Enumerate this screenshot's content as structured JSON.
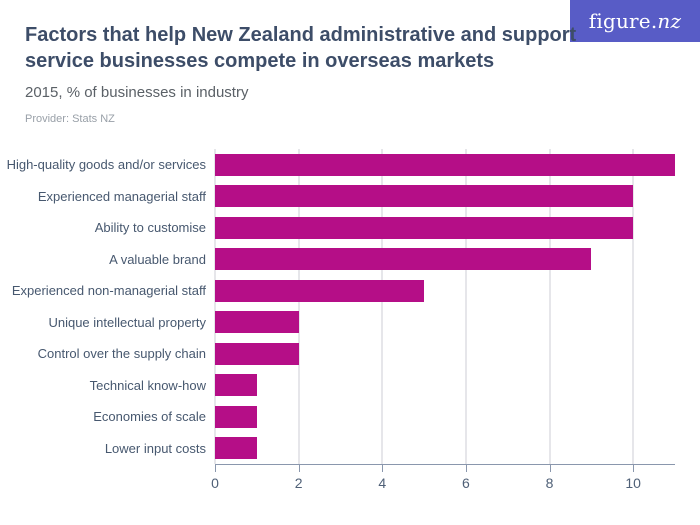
{
  "logo": {
    "text_main": "figure.",
    "text_accent": "nz"
  },
  "header": {
    "title": "Factors that help New Zealand administrative and support service businesses compete in overseas markets",
    "subtitle": "2015, % of businesses in industry",
    "provider": "Provider: Stats NZ"
  },
  "chart_data": {
    "type": "bar",
    "orientation": "horizontal",
    "title": "Factors that help New Zealand administrative and support service businesses compete in overseas markets",
    "subtitle": "2015, % of businesses in industry",
    "categories": [
      "High-quality goods and/or services",
      "Experienced managerial staff",
      "Ability to customise",
      "A valuable brand",
      "Experienced non-managerial staff",
      "Unique intellectual property",
      "Control over the supply chain",
      "Technical know-how",
      "Economies of scale",
      "Lower input costs"
    ],
    "values": [
      11,
      10,
      10,
      9,
      5,
      2,
      2,
      1,
      1,
      1
    ],
    "xlabel": "",
    "ylabel": "",
    "xlim": [
      0,
      11
    ],
    "xticks": [
      0,
      2,
      4,
      6,
      8,
      10
    ],
    "grid": true,
    "legend": false
  },
  "colors": {
    "bar": "#b50e87",
    "logo_bg": "#585cc6",
    "title": "#3d4d68",
    "subtitle": "#5b6167",
    "provider": "#99a0a8",
    "grid": "#e6e6ea",
    "axis": "#8a97ad",
    "tick_label": "#4f6077",
    "category_label": "#47586f"
  }
}
